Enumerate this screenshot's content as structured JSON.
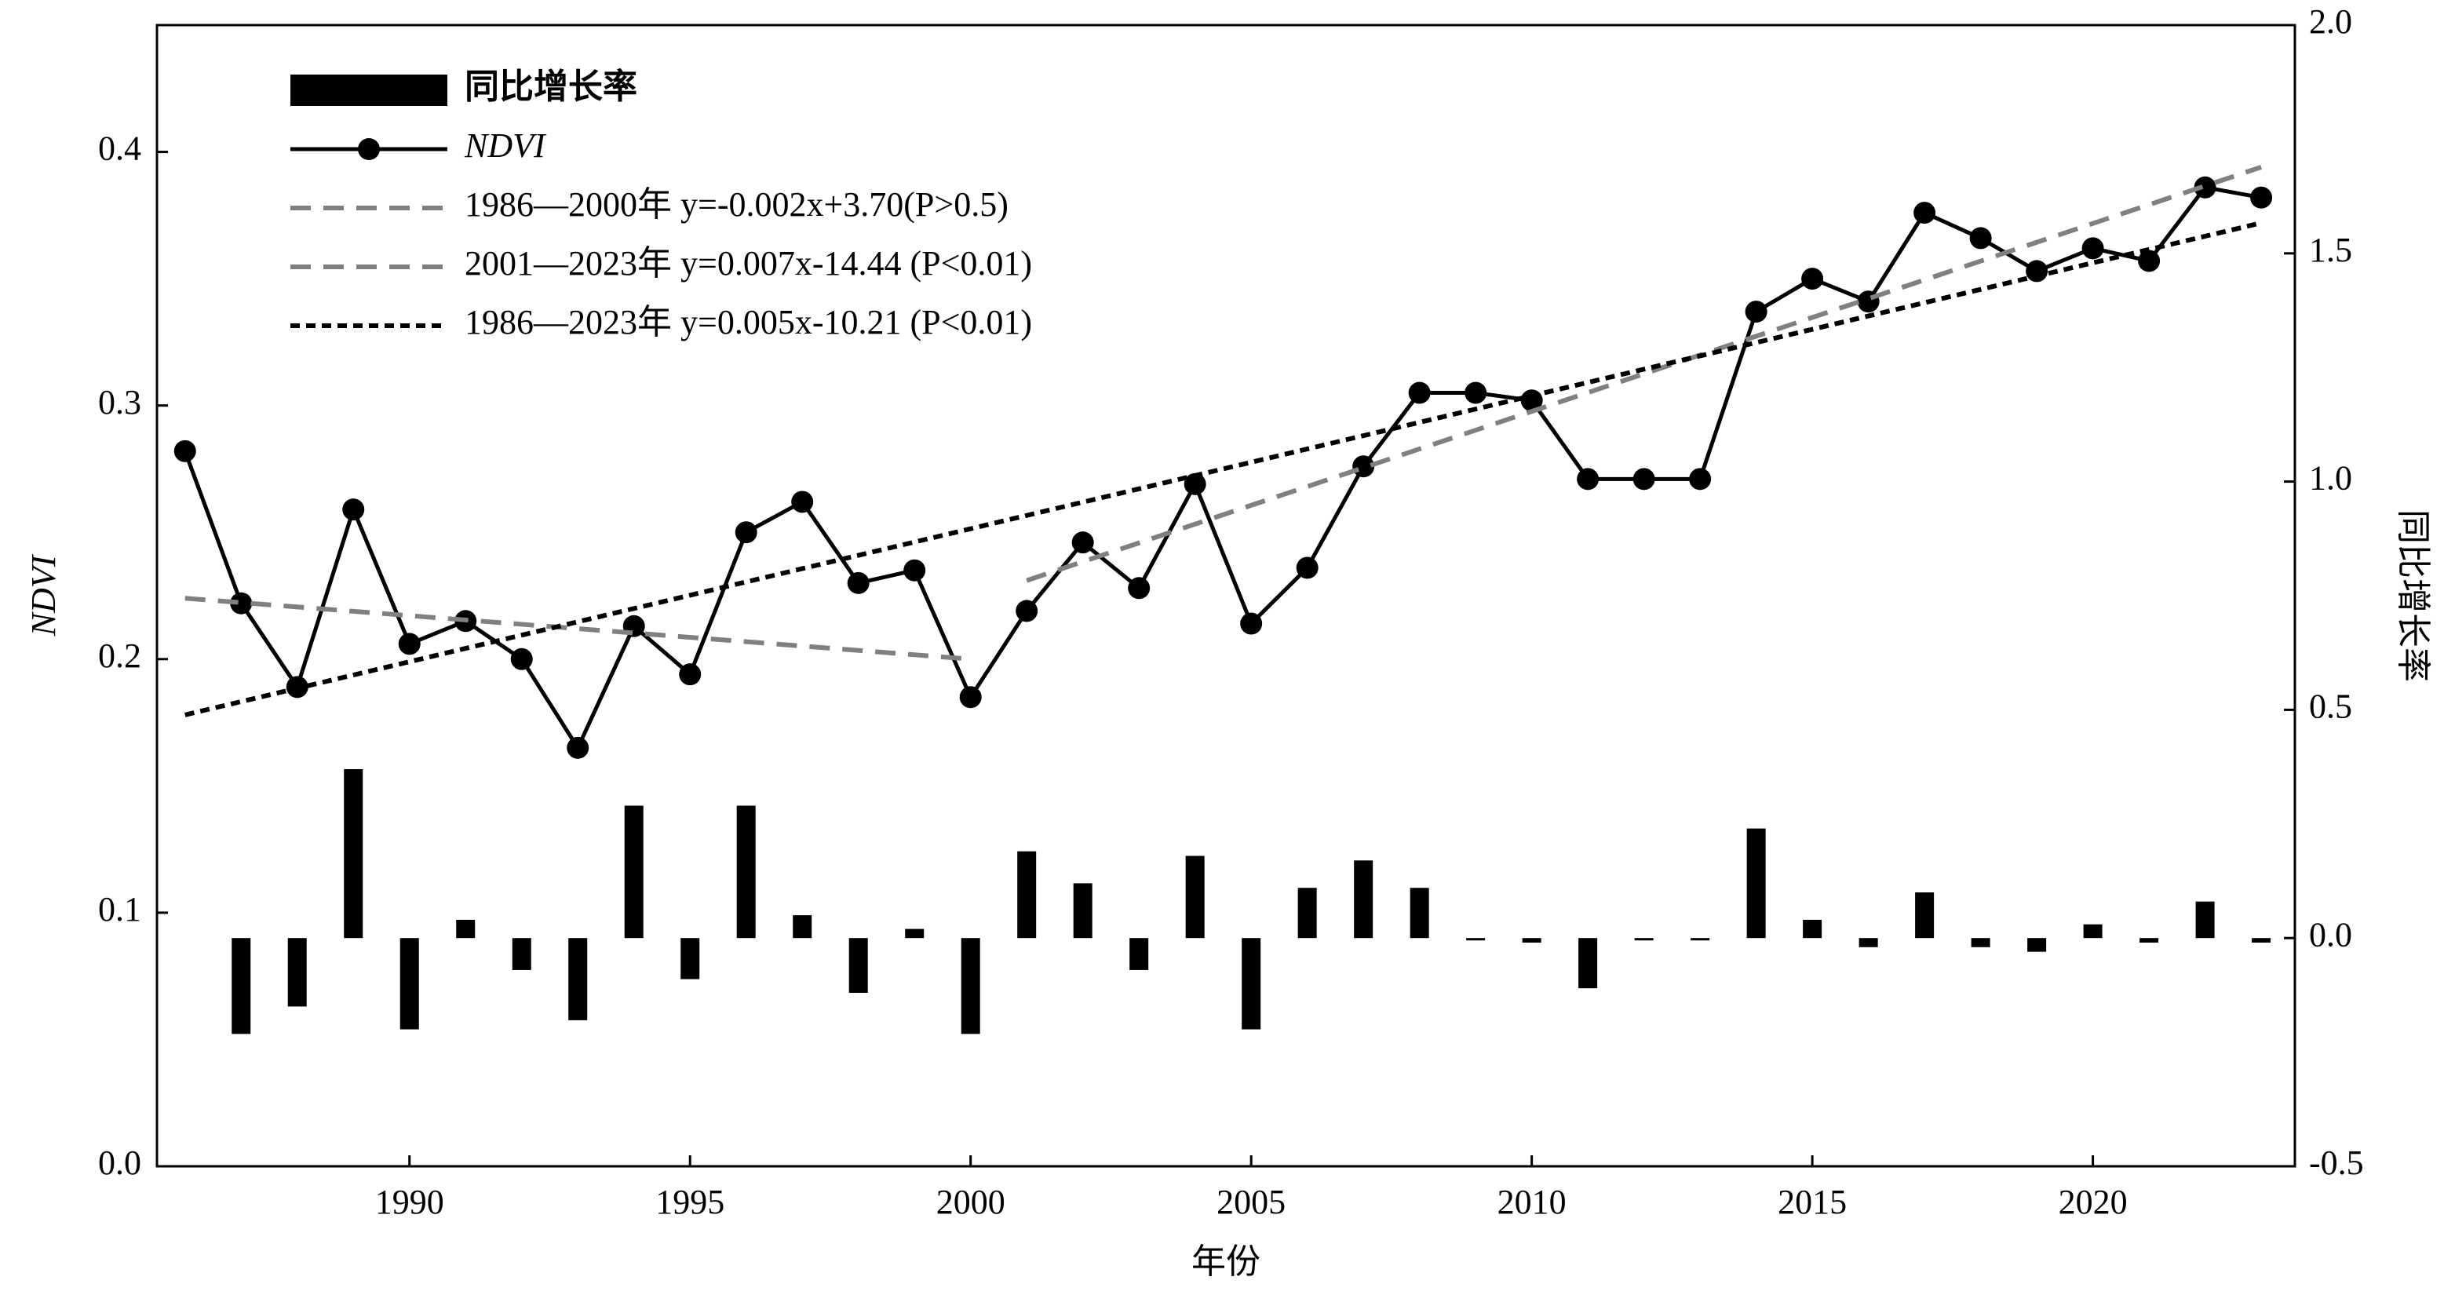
{
  "chart_data": {
    "type": "combo",
    "x": [
      1986,
      1987,
      1988,
      1989,
      1990,
      1991,
      1992,
      1993,
      1994,
      1995,
      1996,
      1997,
      1998,
      1999,
      2000,
      2001,
      2002,
      2003,
      2004,
      2005,
      2006,
      2007,
      2008,
      2009,
      2010,
      2011,
      2012,
      2013,
      2014,
      2015,
      2016,
      2017,
      2018,
      2019,
      2020,
      2021,
      2022,
      2023
    ],
    "xlabel": "年份",
    "ylabel": "NDVI",
    "y2label": "同比增长率",
    "xlim": [
      1985.5,
      2023.6
    ],
    "xticks": [
      1990,
      1995,
      2000,
      2005,
      2010,
      2015,
      2020
    ],
    "ylim": [
      0,
      0.45
    ],
    "yticks": [
      {
        "value": 0,
        "label": "0.0"
      },
      0.1,
      0.2,
      0.3,
      0.4
    ],
    "y2lim": [
      -0.5,
      2.0
    ],
    "y2ticks": [
      -0.5,
      {
        "value": 0,
        "label": "0.0"
      },
      0.5,
      {
        "value": 1,
        "label": "1.0"
      },
      1.5,
      {
        "value": 2,
        "label": "2.0"
      }
    ],
    "legend": "upper left",
    "series": [
      {
        "name": "同比增长率",
        "type": "bar",
        "axis": "y2",
        "color": "#000000",
        "values": [
          null,
          -0.21,
          -0.15,
          0.37,
          -0.2,
          0.04,
          -0.07,
          -0.18,
          0.29,
          -0.09,
          0.29,
          0.05,
          -0.12,
          0.02,
          -0.21,
          0.19,
          0.12,
          -0.07,
          0.18,
          -0.2,
          0.11,
          0.17,
          0.11,
          0,
          -0.01,
          -0.11,
          0,
          0,
          0.24,
          0.04,
          -0.02,
          0.1,
          -0.02,
          -0.03,
          0.03,
          -0.01,
          0.08,
          -0.01
        ]
      },
      {
        "name": "NDVI",
        "type": "line",
        "color": "#000000",
        "values": [
          0.282,
          0.222,
          0.189,
          0.259,
          0.206,
          0.215,
          0.2,
          0.165,
          0.213,
          0.194,
          0.25,
          0.262,
          0.23,
          0.235,
          0.185,
          0.219,
          0.246,
          0.228,
          0.269,
          0.214,
          0.236,
          0.276,
          0.305,
          0.305,
          0.302,
          0.271,
          0.271,
          0.271,
          0.337,
          0.35,
          0.341,
          0.376,
          0.366,
          0.353,
          0.362,
          0.357,
          0.386,
          0.382
        ]
      },
      {
        "name": "1986—2000年 y=-0.002x+3.70(P>0.5)",
        "type": "trend",
        "color": "#808080",
        "line_style": "dashed",
        "x": [
          1986,
          2000
        ],
        "values": [
          0.224,
          0.2
        ]
      },
      {
        "name": "2001—2023年 y=0.007x-14.44 (P<0.01)",
        "type": "trend",
        "color": "#808080",
        "line_style": "dashed",
        "x": [
          2001,
          2023
        ],
        "values": [
          0.231,
          0.394
        ]
      },
      {
        "name": "1986—2023年 y=0.005x-10.21 (P<0.01)",
        "type": "trend",
        "color": "#000000",
        "line_style": "dotted",
        "x": [
          1986,
          2023
        ],
        "values": [
          0.178,
          0.372
        ]
      }
    ]
  }
}
